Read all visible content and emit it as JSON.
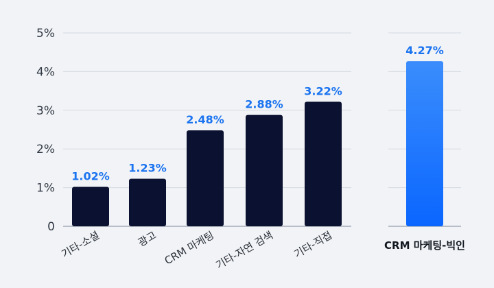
{
  "chart_data": {
    "type": "bar",
    "ylim": [
      0,
      5
    ],
    "y_ticks": [
      0,
      1,
      2,
      3,
      4,
      5
    ],
    "y_tick_labels": [
      "0",
      "1%",
      "2%",
      "3%",
      "4%",
      "5%"
    ],
    "grid": true,
    "categories": [
      "기타-소셜",
      "광고",
      "CRM 마케팅",
      "기타-자연 검색",
      "기타-직접"
    ],
    "values": [
      1.02,
      1.23,
      2.48,
      2.88,
      3.22
    ],
    "value_labels": [
      "1.02%",
      "1.23%",
      "2.48%",
      "2.88%",
      "3.22%"
    ],
    "highlight": {
      "category": "CRM 마케팅-빅인",
      "value": 4.27,
      "value_label": "4.27%"
    }
  },
  "colors": {
    "bar": "#0b1130",
    "highlight_top": "#3b8dfc",
    "highlight_bottom": "#0a66ff",
    "data_label": "#1a73f0",
    "grid": "#d5dae1",
    "axis": "#b8bec8"
  }
}
